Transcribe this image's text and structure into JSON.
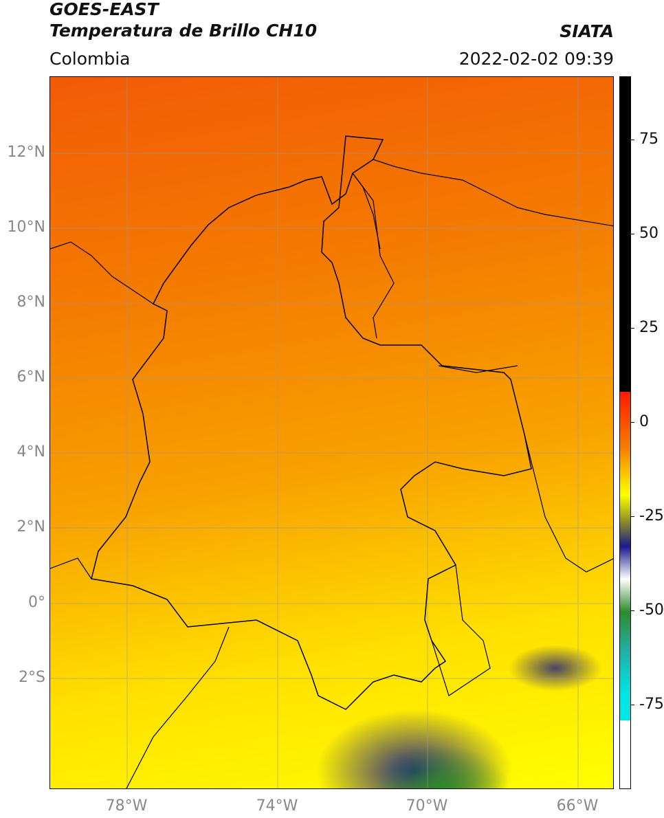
{
  "header": {
    "title_line1": "GOES-EAST",
    "title_line2": "Temperatura de Brillo CH10",
    "region": "Colombia",
    "organization": "SIATA",
    "timestamp": "2022-02-02 09:39"
  },
  "map": {
    "lat_labels": [
      "12°N",
      "10°N",
      "8°N",
      "6°N",
      "4°N",
      "2°N",
      "0°",
      "2°S"
    ],
    "lon_labels": [
      "78°W",
      "74°W",
      "70°W",
      "66°W"
    ],
    "extent": {
      "lon_min": -80,
      "lon_max": -65,
      "lat_min": -5,
      "lat_max": 14
    }
  },
  "colorbar": {
    "ticks": [
      "75",
      "50",
      "25",
      "0",
      "-25",
      "-50",
      "-75"
    ],
    "range": [
      -95,
      90
    ],
    "colors": {
      "black": "#000000",
      "red": "#ff0000",
      "orange": "#f57c00",
      "yellow": "#ffff00",
      "olive": "#8a8a2a",
      "navy": "#1a1a8c",
      "white": "#ffffff",
      "green": "#2e8b2e",
      "teal": "#20b2aa",
      "cyan": "#00e5e5"
    }
  }
}
